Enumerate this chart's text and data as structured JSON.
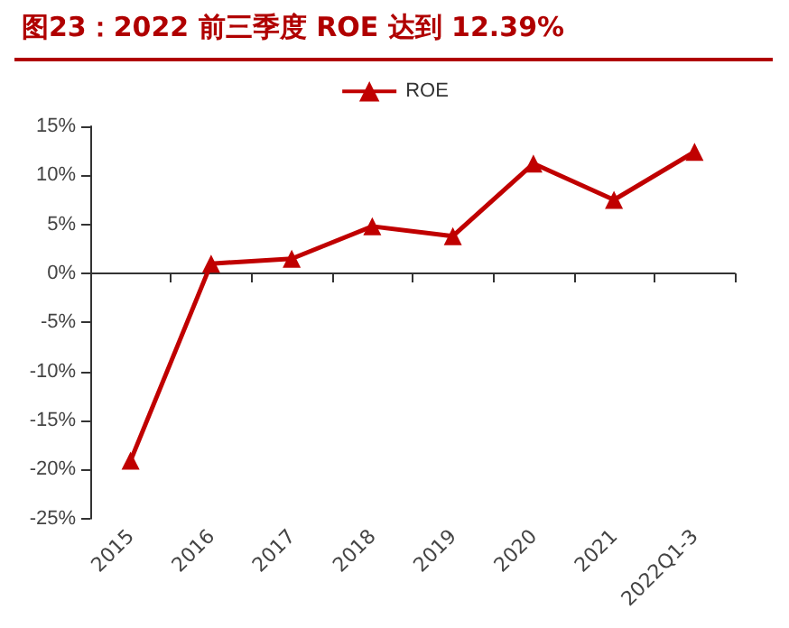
{
  "chart_data": {
    "type": "line",
    "title": "图23：2022 前三季度 ROE 达到 12.39%",
    "categories": [
      "2015",
      "2016",
      "2017",
      "2018",
      "2019",
      "2020",
      "2021",
      "2022Q1-3"
    ],
    "series": [
      {
        "name": "ROE",
        "color": "#c00000",
        "values": [
          -19.1,
          1.0,
          1.5,
          4.8,
          3.8,
          11.2,
          7.5,
          12.4
        ]
      }
    ],
    "ylim": [
      -25,
      15
    ],
    "yticks": [
      {
        "value": -25,
        "label": "-25%"
      },
      {
        "value": -20,
        "label": "-20%"
      },
      {
        "value": -15,
        "label": "-15%"
      },
      {
        "value": -10,
        "label": "-10%"
      },
      {
        "value": -5,
        "label": "-5%"
      },
      {
        "value": 0,
        "label": "0%"
      },
      {
        "value": 5,
        "label": "5%"
      },
      {
        "value": 10,
        "label": "10%"
      },
      {
        "value": 15,
        "label": "15%"
      }
    ],
    "legend": "top",
    "marker": "triangle",
    "line_style": "solid"
  }
}
